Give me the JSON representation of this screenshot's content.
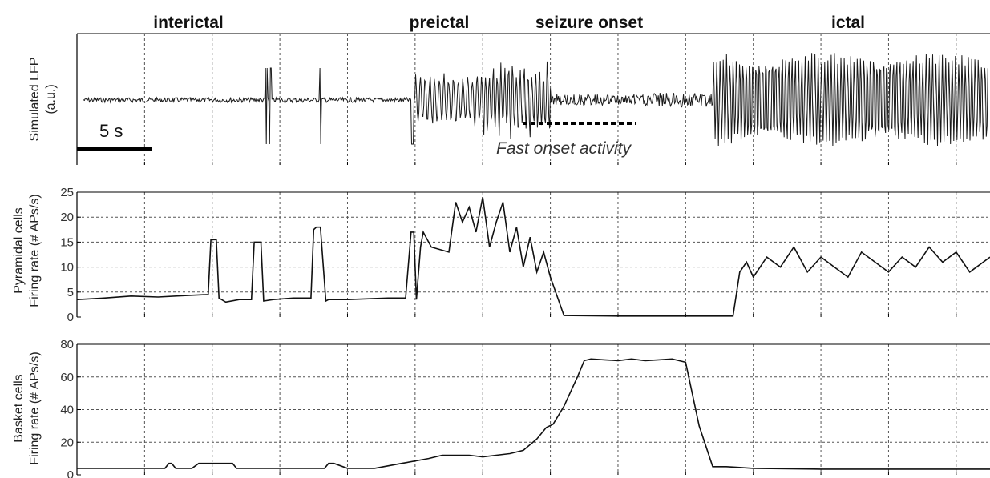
{
  "chart_data": {
    "type": "line",
    "phases": [
      "interictal",
      "preictal",
      "seizure onset",
      "ictal"
    ],
    "scale_bar": "5 s",
    "annotation": "Fast onset activity",
    "panels": [
      {
        "id": "lfp",
        "ylabel": [
          "Simulated LFP",
          "(a.u.)"
        ],
        "signal": "simulated LFP trace"
      },
      {
        "id": "pyramidal",
        "ylabel": [
          "Pyramidal cells",
          "Firing rate (# APs/s)"
        ],
        "ylim": [
          0,
          25
        ],
        "yticks": [
          0,
          5,
          10,
          15,
          20,
          25
        ],
        "series": [
          {
            "x": [
              0,
              2,
              4,
              6,
              8,
              9.7,
              9.9,
              10.3,
              10.5,
              11,
              12,
              12.9,
              13.1,
              13.6,
              13.8,
              14.5,
              16,
              17.3,
              17.5,
              17.7,
              18.0,
              18.4,
              18.6,
              20,
              23,
              24.3,
              24.7,
              24.9,
              25.1,
              25.4,
              25.6,
              26.2,
              27.5,
              28,
              28.5,
              29,
              29.5,
              30,
              30.5,
              31,
              31.5,
              32,
              32.5,
              33,
              33.5,
              34,
              34.5,
              35,
              36,
              40,
              44,
              47,
              48.5,
              49,
              49.5,
              50,
              51,
              52,
              53,
              54,
              55,
              56,
              57,
              58,
              59,
              60,
              61,
              62,
              63,
              64,
              65,
              66,
              67.5
            ],
            "y": [
              3.5,
              3.8,
              4.2,
              4.0,
              4.3,
              4.5,
              15.5,
              15.5,
              3.8,
              3.0,
              3.5,
              3.5,
              15.0,
              15.0,
              3.2,
              3.5,
              3.8,
              3.8,
              17.5,
              18.0,
              18.0,
              3.2,
              3.5,
              3.5,
              3.8,
              3.8,
              17.0,
              17.0,
              3.5,
              14.0,
              17.0,
              14.0,
              13.0,
              23.0,
              19.0,
              22.0,
              17.0,
              24.0,
              14.0,
              19.0,
              23.0,
              13.0,
              18.0,
              10.0,
              16.0,
              9.0,
              13.0,
              8.0,
              0.3,
              0.2,
              0.2,
              0.2,
              0.2,
              9.0,
              11.0,
              8.0,
              12.0,
              10.0,
              14.0,
              9.0,
              12.0,
              10.0,
              8.0,
              13.0,
              11.0,
              9.0,
              12.0,
              10.0,
              14.0,
              11.0,
              13.0,
              9.0,
              12.0
            ]
          }
        ]
      },
      {
        "id": "basket",
        "ylabel": [
          "Basket cells",
          "Firing rate (# APs/s)"
        ],
        "ylim": [
          0,
          80
        ],
        "yticks": [
          0,
          20,
          40,
          60,
          80
        ],
        "series": [
          {
            "x": [
              0,
              6.5,
              6.8,
              7.0,
              7.3,
              8.5,
              9.0,
              11.5,
              11.8,
              12.3,
              12.5,
              18.3,
              18.6,
              19,
              20,
              22,
              24,
              26,
              27,
              28,
              29,
              30,
              31,
              32,
              33,
              34,
              34.7,
              35.2,
              36,
              37,
              37.5,
              38,
              39,
              40,
              41,
              42,
              43,
              44,
              45,
              46,
              47,
              48,
              49,
              50,
              55,
              60,
              67.5
            ],
            "y": [
              4,
              4,
              7,
              7,
              4,
              4,
              7,
              7,
              4,
              4,
              4,
              4,
              7,
              7,
              4,
              4,
              7,
              10,
              12,
              12,
              12,
              11,
              12,
              13,
              15,
              22,
              29,
              31,
              42,
              60,
              70,
              71,
              70.5,
              70,
              71,
              70,
              70.5,
              71,
              69,
              30,
              5,
              5,
              4.5,
              4,
              3.5,
              3.5,
              3.5
            ]
          }
        ]
      }
    ],
    "xlim": [
      0,
      67.5
    ],
    "xticks": [
      0,
      5,
      10,
      15,
      20,
      25,
      30,
      35,
      40,
      45,
      50,
      55,
      60,
      65
    ],
    "grid": true
  }
}
